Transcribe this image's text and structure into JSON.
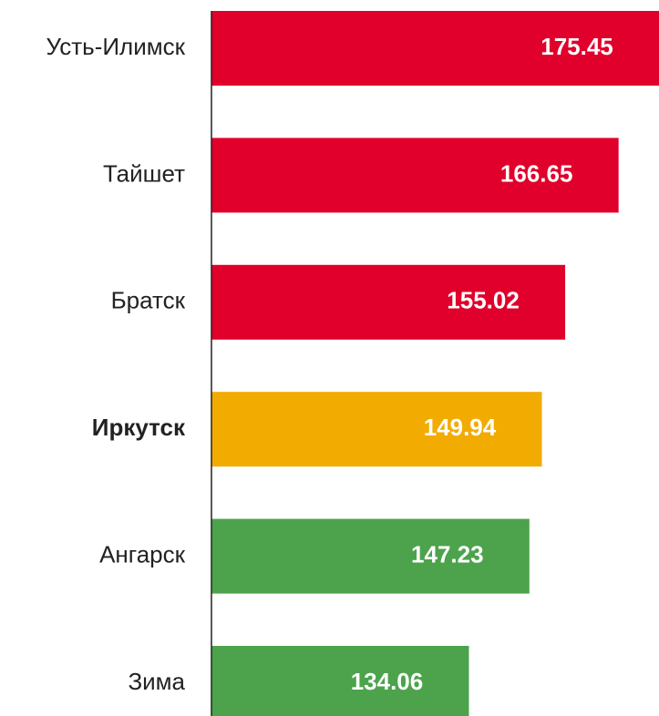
{
  "chart_data": {
    "type": "hbar",
    "categories": [
      "Усть-Илимск",
      "Тайшет",
      "Братск",
      "Иркутск",
      "Ангарск",
      "Зима"
    ],
    "values": [
      175.45,
      166.65,
      155.02,
      149.94,
      147.23,
      134.06
    ],
    "colors": [
      "#e0002b",
      "#e0002b",
      "#e0002b",
      "#f2ab00",
      "#4ca34c",
      "#4ca34c"
    ],
    "label_weights": [
      "normal",
      "normal",
      "normal",
      "bold",
      "normal",
      "normal"
    ],
    "xlim": [
      78,
      175.45
    ]
  }
}
